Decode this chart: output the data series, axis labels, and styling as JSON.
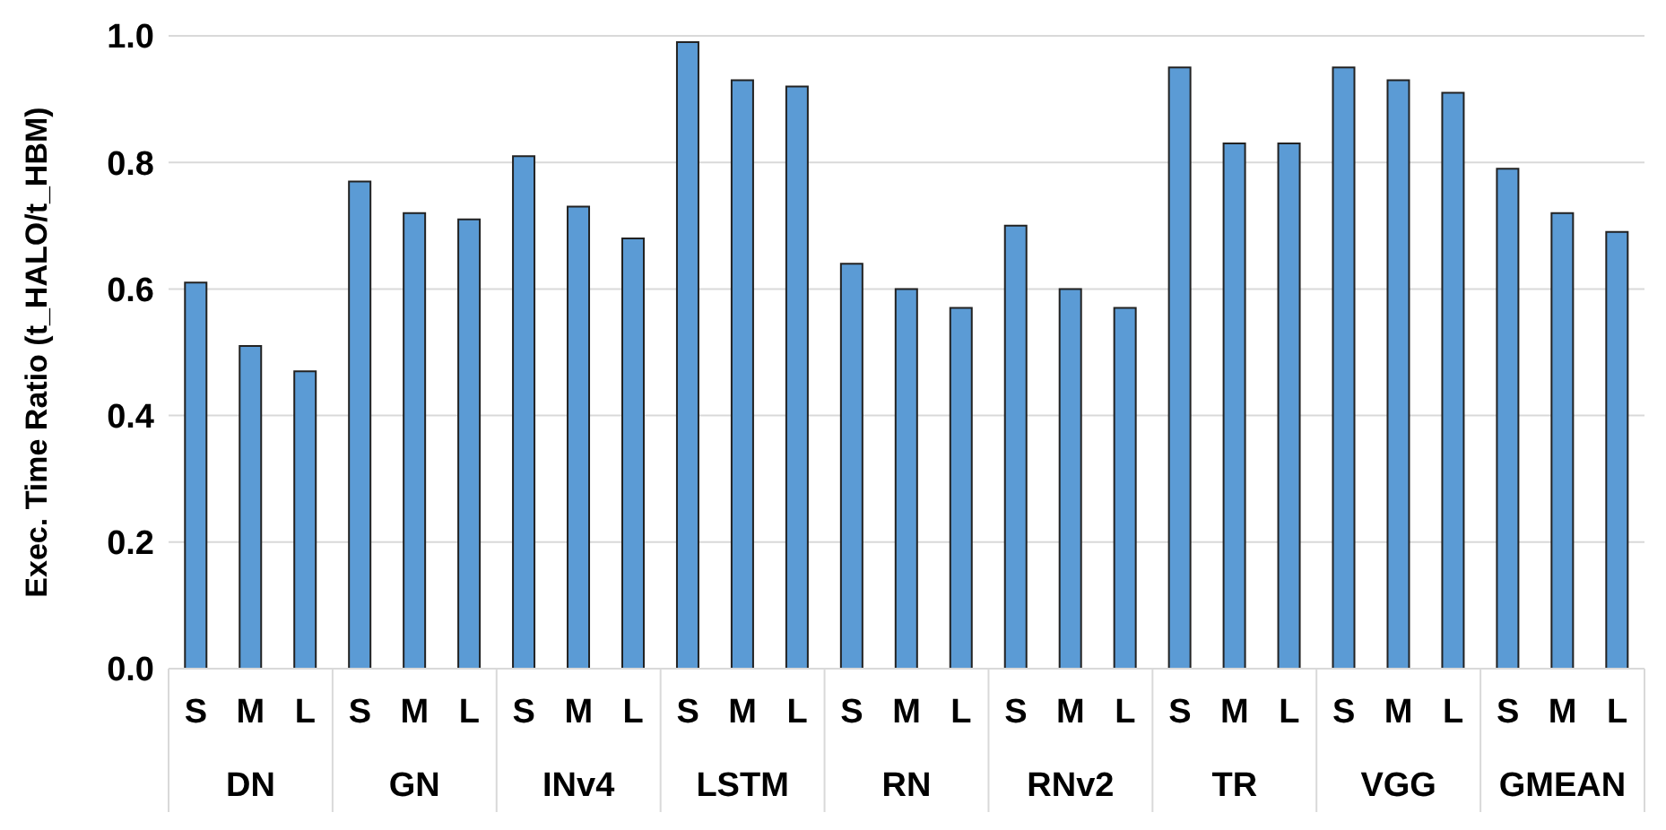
{
  "chart_data": {
    "type": "bar",
    "ylabel": "Exec. Time Ratio (t_HALO/t_HBM)",
    "categories": [
      "S",
      "M",
      "L",
      "S",
      "M",
      "L",
      "S",
      "M",
      "L",
      "S",
      "M",
      "L",
      "S",
      "M",
      "L",
      "S",
      "M",
      "L",
      "S",
      "M",
      "L",
      "S",
      "M",
      "L",
      "S",
      "M",
      "L"
    ],
    "annotations": [
      "DN",
      "GN",
      "INv4",
      "LSTM",
      "RN",
      "RNv2",
      "TR",
      "VGG",
      "GMEAN"
    ],
    "values": [
      0.61,
      0.51,
      0.47,
      0.77,
      0.72,
      0.71,
      0.81,
      0.73,
      0.68,
      0.99,
      0.93,
      0.92,
      0.64,
      0.6,
      0.57,
      0.7,
      0.6,
      0.57,
      0.95,
      0.83,
      0.83,
      0.95,
      0.93,
      0.91,
      0.79,
      0.72,
      0.69
    ],
    "color": "#5b9bd5",
    "ylim": [
      0,
      1
    ],
    "yticks": [
      {
        "value": 0,
        "label": "0.0"
      },
      {
        "value": 0.2,
        "label": "0.2"
      },
      {
        "value": 0.4,
        "label": "0.4"
      },
      {
        "value": 0.6,
        "label": "0.6"
      },
      {
        "value": 0.8,
        "label": "0.8"
      },
      {
        "value": 1,
        "label": "1.0"
      }
    ],
    "grid": "y"
  }
}
